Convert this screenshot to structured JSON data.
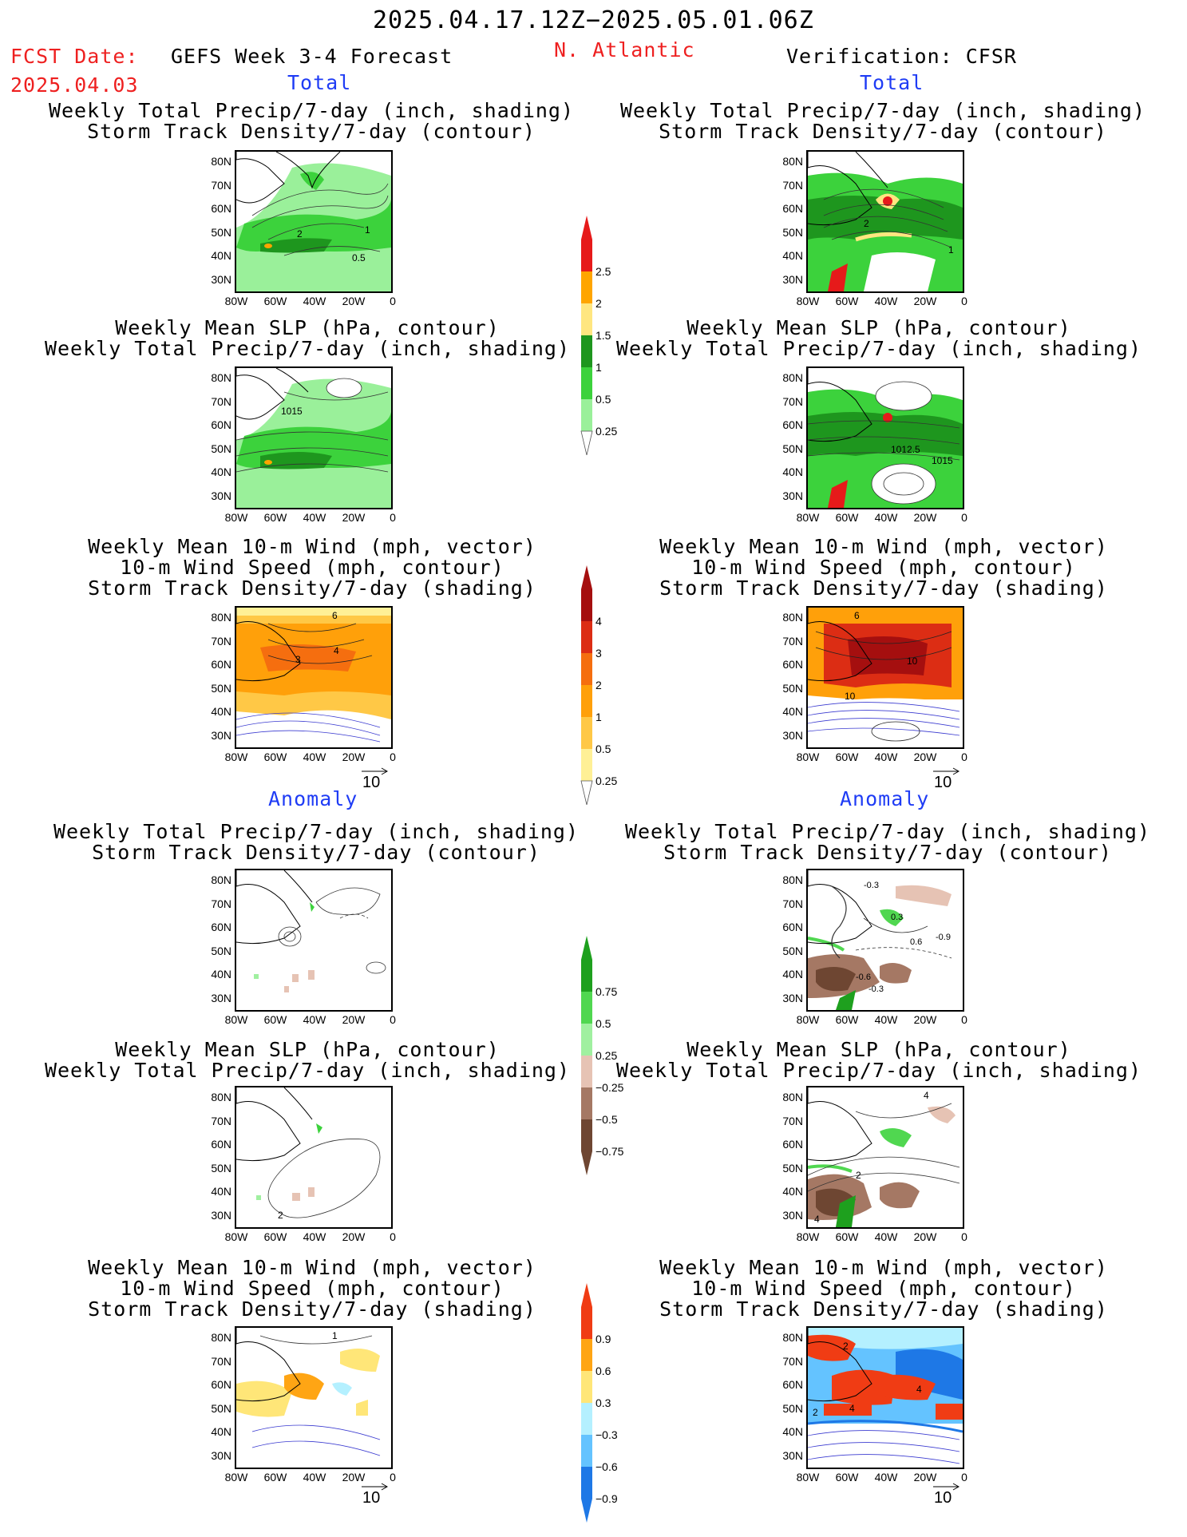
{
  "header": {
    "period": "2025.04.17.12Z−2025.05.01.06Z",
    "fcst_label": "FCST Date:",
    "fcst_date": "2025.04.03",
    "model": "GEFS Week 3-4 Forecast",
    "region": "N. Atlantic",
    "verification": "Verification: CFSR"
  },
  "sections": {
    "total_left": "Total",
    "total_right": "Total",
    "anomaly_left": "Anomaly",
    "anomaly_right": "Anomaly"
  },
  "titles": {
    "precip_storm_1": "Weekly Total Precip/7-day (inch, shading)",
    "precip_storm_2": "Storm Track Density/7-day (contour)",
    "slp_1": "Weekly Mean SLP (hPa, contour)",
    "slp_2": "Weekly Total Precip/7-day (inch, shading)",
    "wind_1": "Weekly Mean 10-m Wind (mph, vector)",
    "wind_2": "10-m Wind Speed (mph, contour)",
    "wind_3": "Storm Track Density/7-day (shading)"
  },
  "axes": {
    "lat_labels": [
      "80N",
      "70N",
      "60N",
      "50N",
      "40N",
      "30N"
    ],
    "lon_labels": [
      "80W",
      "60W",
      "40W",
      "20W",
      "0"
    ]
  },
  "vector_ref": "10",
  "contour_labels": {
    "left_total_precip": [
      "2",
      "1",
      "0.5"
    ],
    "right_total_precip": [
      "2",
      "1"
    ],
    "left_total_slp": [
      "1015"
    ],
    "right_total_slp": [
      "1012.5",
      "1015"
    ],
    "left_total_wind": [
      "3",
      "4",
      "6"
    ],
    "right_total_wind": [
      "10",
      "10",
      "6"
    ],
    "right_anom_precip": [
      "-0.3",
      "0.3",
      "0.6",
      "-0.9",
      "-0.6",
      "-0.3"
    ],
    "left_anom_slp": [
      "2"
    ],
    "right_anom_slp": [
      "2",
      "4",
      "4"
    ],
    "left_anom_wind": [
      "1"
    ],
    "right_anom_wind": [
      "2",
      "4",
      "4",
      "2"
    ]
  },
  "colorbars": {
    "precip_total": {
      "labels": [
        "2.5",
        "2",
        "1.5",
        "1",
        "0.5",
        "0.25"
      ],
      "colors": [
        "#e61a1a",
        "#ffa500",
        "#ffe680",
        "#1e961e",
        "#3cd23c",
        "#9af09a"
      ]
    },
    "storm_total": {
      "labels": [
        "4",
        "3",
        "2",
        "1",
        "0.5",
        "0.25"
      ],
      "colors": [
        "#a50f0f",
        "#dc2d14",
        "#f56e0f",
        "#ffa00a",
        "#ffc846",
        "#fff096"
      ]
    },
    "precip_anom": {
      "labels": [
        "0.75",
        "0.5",
        "0.25",
        "−0.25",
        "−0.5",
        "−0.75"
      ],
      "colors": [
        "#1ea01e",
        "#50d750",
        "#a0f0a0",
        "#e6c3b4",
        "#a57864",
        "#6e4632"
      ]
    },
    "storm_anom": {
      "labels": [
        "0.9",
        "0.6",
        "0.3",
        "−0.3",
        "−0.6",
        "−0.9"
      ],
      "colors": [
        "#f03c14",
        "#ffa514",
        "#ffe678",
        "#b4f0ff",
        "#64c3ff",
        "#1e78e6"
      ]
    }
  }
}
